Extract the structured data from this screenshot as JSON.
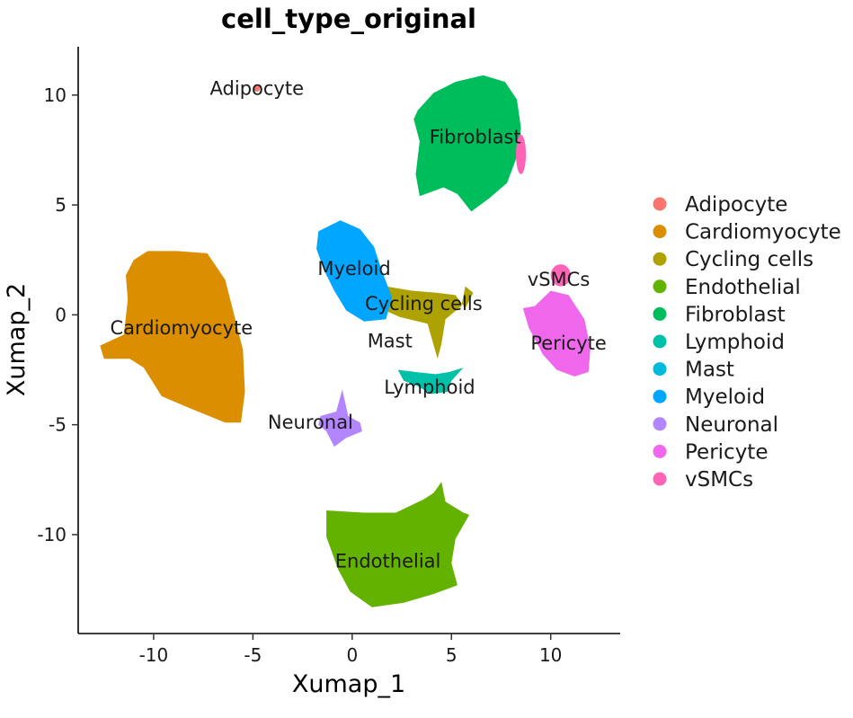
{
  "chart_data": {
    "type": "scatter",
    "title": "cell_type_original",
    "xlabel": "Xumap_1",
    "ylabel": "Xumap_2",
    "xlim": [
      -13.8,
      13.5
    ],
    "ylim": [
      -14.5,
      12.2
    ],
    "x_ticks": [
      -10,
      -5,
      0,
      5,
      10
    ],
    "x_tick_labels": [
      "-10",
      "-5",
      "0",
      "5",
      "10"
    ],
    "y_ticks": [
      -10,
      -5,
      0,
      5,
      10
    ],
    "y_tick_labels": [
      "-10",
      "-5",
      "0",
      "5",
      "10"
    ],
    "grid": false,
    "legend_position": "right",
    "series": [
      {
        "name": "Adipocyte",
        "color": "#F8766D",
        "label": {
          "text": "Adipocyte",
          "x": -4.8,
          "y": 10.3
        },
        "blobs": [
          {
            "cx": -4.8,
            "cy": 10.3,
            "rx": 0.15,
            "ry": 0.15
          }
        ]
      },
      {
        "name": "Cardiomyocyte",
        "color": "#DB8E00",
        "label": {
          "text": "Cardiomyocyte",
          "x": -8.6,
          "y": -0.6
        },
        "polygon": [
          [
            -11.0,
            2.5
          ],
          [
            -10.3,
            2.9
          ],
          [
            -8.8,
            2.9
          ],
          [
            -7.3,
            2.8
          ],
          [
            -6.4,
            1.6
          ],
          [
            -6.0,
            0.2
          ],
          [
            -5.5,
            -1.6
          ],
          [
            -5.4,
            -3.5
          ],
          [
            -5.6,
            -4.9
          ],
          [
            -6.4,
            -4.9
          ],
          [
            -8.3,
            -4.2
          ],
          [
            -9.6,
            -3.7
          ],
          [
            -10.5,
            -2.4
          ],
          [
            -11.2,
            -2.0
          ],
          [
            -12.5,
            -2.0
          ],
          [
            -12.7,
            -1.4
          ],
          [
            -11.5,
            -0.9
          ],
          [
            -11.3,
            0.7
          ],
          [
            -11.4,
            1.8
          ]
        ]
      },
      {
        "name": "Cycling cells",
        "color": "#AEA200",
        "label": {
          "text": "Cycling cells",
          "x": 3.6,
          "y": 0.5
        },
        "polygon": [
          [
            1.7,
            1.3
          ],
          [
            3.0,
            1.1
          ],
          [
            4.3,
            1.0
          ],
          [
            5.2,
            0.9
          ],
          [
            5.7,
            0.3
          ],
          [
            6.1,
            1.0
          ],
          [
            5.7,
            1.3
          ],
          [
            5.5,
            0.4
          ],
          [
            4.7,
            -0.2
          ],
          [
            4.5,
            -1.3
          ],
          [
            4.3,
            -2.0
          ],
          [
            3.8,
            -0.4
          ],
          [
            2.4,
            -0.1
          ],
          [
            1.4,
            0.3
          ]
        ]
      },
      {
        "name": "Endothelial",
        "color": "#64B200",
        "label": {
          "text": "Endothelial",
          "x": 1.8,
          "y": -11.2
        },
        "polygon": [
          [
            -1.3,
            -8.9
          ],
          [
            0.6,
            -9.0
          ],
          [
            2.2,
            -9.0
          ],
          [
            3.6,
            -8.4
          ],
          [
            4.1,
            -8.1
          ],
          [
            4.5,
            -7.6
          ],
          [
            4.7,
            -8.5
          ],
          [
            5.6,
            -9.0
          ],
          [
            5.9,
            -9.1
          ],
          [
            5.2,
            -10.2
          ],
          [
            5.0,
            -11.3
          ],
          [
            5.3,
            -12.3
          ],
          [
            4.1,
            -12.7
          ],
          [
            2.6,
            -13.1
          ],
          [
            1.0,
            -13.3
          ],
          [
            -0.1,
            -12.6
          ],
          [
            -0.7,
            -11.6
          ],
          [
            -1.3,
            -10.1
          ]
        ]
      },
      {
        "name": "Fibroblast",
        "color": "#00BD5C",
        "label": {
          "text": "Fibroblast",
          "x": 6.2,
          "y": 8.1
        },
        "polygon": [
          [
            3.3,
            9.3
          ],
          [
            4.1,
            10.1
          ],
          [
            5.2,
            10.6
          ],
          [
            6.6,
            10.9
          ],
          [
            7.7,
            10.6
          ],
          [
            8.3,
            9.8
          ],
          [
            8.5,
            8.5
          ],
          [
            8.3,
            7.2
          ],
          [
            7.8,
            6.0
          ],
          [
            6.9,
            5.3
          ],
          [
            6.0,
            4.7
          ],
          [
            5.3,
            5.5
          ],
          [
            4.6,
            5.8
          ],
          [
            3.4,
            5.4
          ],
          [
            3.2,
            6.4
          ],
          [
            3.4,
            7.9
          ],
          [
            3.1,
            8.9
          ]
        ]
      },
      {
        "name": "Lymphoid",
        "color": "#00C1A7",
        "label": {
          "text": "Lymphoid",
          "x": 3.9,
          "y": -3.3
        },
        "polygon": [
          [
            2.3,
            -2.5
          ],
          [
            3.2,
            -2.6
          ],
          [
            4.2,
            -2.7
          ],
          [
            4.9,
            -2.6
          ],
          [
            5.6,
            -2.4
          ],
          [
            5.0,
            -3.0
          ],
          [
            4.8,
            -3.5
          ],
          [
            4.0,
            -3.6
          ],
          [
            3.2,
            -3.2
          ],
          [
            2.6,
            -3.0
          ]
        ]
      },
      {
        "name": "Mast",
        "color": "#00BADE",
        "label": {
          "text": "Mast",
          "x": 1.9,
          "y": -1.2
        },
        "blobs": []
      },
      {
        "name": "Myeloid",
        "color": "#00A6FF",
        "label": {
          "text": "Myeloid",
          "x": 0.1,
          "y": 2.1
        },
        "polygon": [
          [
            -1.7,
            3.8
          ],
          [
            -0.6,
            4.3
          ],
          [
            0.4,
            3.9
          ],
          [
            1.1,
            3.1
          ],
          [
            1.5,
            2.0
          ],
          [
            2.0,
            0.8
          ],
          [
            1.7,
            -0.2
          ],
          [
            0.6,
            -0.3
          ],
          [
            -0.3,
            0.2
          ],
          [
            -0.9,
            1.1
          ],
          [
            -1.4,
            2.0
          ],
          [
            -1.8,
            3.0
          ]
        ]
      },
      {
        "name": "Neuronal",
        "color": "#B385FF",
        "label": {
          "text": "Neuronal",
          "x": -2.1,
          "y": -4.9
        },
        "polygon": [
          [
            -1.6,
            -4.6
          ],
          [
            -0.8,
            -4.4
          ],
          [
            -0.5,
            -3.4
          ],
          [
            -0.2,
            -4.6
          ],
          [
            0.4,
            -4.9
          ],
          [
            0.5,
            -5.3
          ],
          [
            -0.3,
            -5.6
          ],
          [
            -0.9,
            -6.0
          ],
          [
            -1.3,
            -5.3
          ],
          [
            -1.7,
            -5.0
          ]
        ]
      },
      {
        "name": "Pericyte",
        "color": "#EF67EB",
        "label": {
          "text": "Pericyte",
          "x": 10.9,
          "y": -1.3
        },
        "polygon": [
          [
            9.2,
            0.4
          ],
          [
            10.0,
            1.1
          ],
          [
            10.9,
            0.9
          ],
          [
            11.7,
            -0.2
          ],
          [
            12.0,
            -1.5
          ],
          [
            11.9,
            -2.6
          ],
          [
            11.2,
            -2.8
          ],
          [
            10.3,
            -2.5
          ],
          [
            9.6,
            -1.8
          ],
          [
            8.9,
            -0.6
          ],
          [
            8.6,
            0.3
          ]
        ]
      },
      {
        "name": "vSMCs",
        "color": "#FF63B6",
        "label": {
          "text": "vSMCs",
          "x": 10.4,
          "y": 1.6
        },
        "blobs": [
          {
            "cx": 10.5,
            "cy": 1.8,
            "rx": 0.5,
            "ry": 0.5
          },
          {
            "cx": 8.5,
            "cy": 7.3,
            "rx": 0.25,
            "ry": 0.9
          }
        ]
      }
    ]
  }
}
